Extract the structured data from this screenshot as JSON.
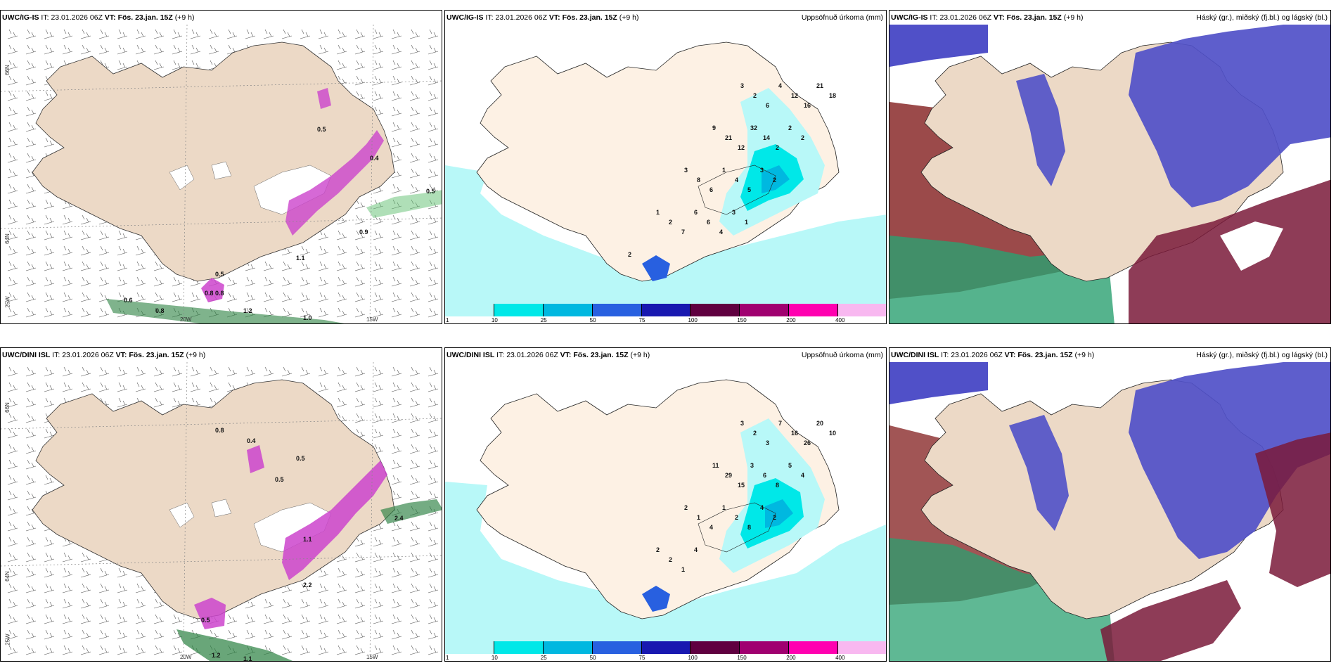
{
  "rows": [
    {
      "model": "UWC/IG-IS",
      "it_label": "IT:",
      "it_value": "23.01.2026 06Z",
      "vt_label": "VT:",
      "vt_value": "Fös. 23.jan. 15Z",
      "lead": "(+9 h)"
    },
    {
      "model": "UWC/DINI ISL",
      "it_label": "IT:",
      "it_value": "23.01.2026 06Z",
      "vt_label": "VT:",
      "vt_value": "Fös. 23.jan. 15Z",
      "lead": "(+9 h)"
    }
  ],
  "precip_title": "Uppsöfnuð úrkoma (mm)",
  "cloud_title": "Háský (gr.), miðský (fj.bl.) og lágský (bl.)",
  "grid_labels": {
    "lat66": "66N",
    "lat64": "64N",
    "lon25": "25W",
    "lon20": "20W",
    "lon15": "15W"
  },
  "colorbar": {
    "labels": [
      "1",
      "10",
      "25",
      "50",
      "75",
      "100",
      "150",
      "200",
      "400"
    ],
    "colors": [
      "#b8f8f8",
      "#00e8e8",
      "#00b8e0",
      "#2860e0",
      "#1818b0",
      "#600040",
      "#a00070",
      "#ff00b0",
      "#f8b8f0"
    ]
  },
  "wind_labels_top": [
    "0.5",
    "0.9",
    "0.4",
    "1.1",
    "0.5",
    "0.8",
    "0.8",
    "0.6",
    "0.8",
    "1.2",
    "1.0",
    "0.5"
  ],
  "wind_labels_bottom": [
    "0.5",
    "0.5",
    "0.8",
    "0.4",
    "2.2",
    "1.1",
    "0.5",
    "2.4",
    "1.1",
    "1.2"
  ],
  "precip_nums_top": [
    "3",
    "2",
    "6",
    "4",
    "12",
    "16",
    "21",
    "18",
    "9",
    "21",
    "12",
    "32",
    "14",
    "2",
    "2",
    "2",
    "3",
    "8",
    "6",
    "1",
    "4",
    "5",
    "3",
    "2",
    "1",
    "2",
    "7",
    "6",
    "6",
    "4",
    "3",
    "1",
    "2"
  ],
  "precip_nums_bottom": [
    "3",
    "2",
    "3",
    "7",
    "16",
    "26",
    "20",
    "10",
    "11",
    "29",
    "15",
    "3",
    "6",
    "8",
    "5",
    "4",
    "2",
    "1",
    "4",
    "1",
    "2",
    "8",
    "4",
    "2",
    "2",
    "2",
    "1",
    "4"
  ]
}
